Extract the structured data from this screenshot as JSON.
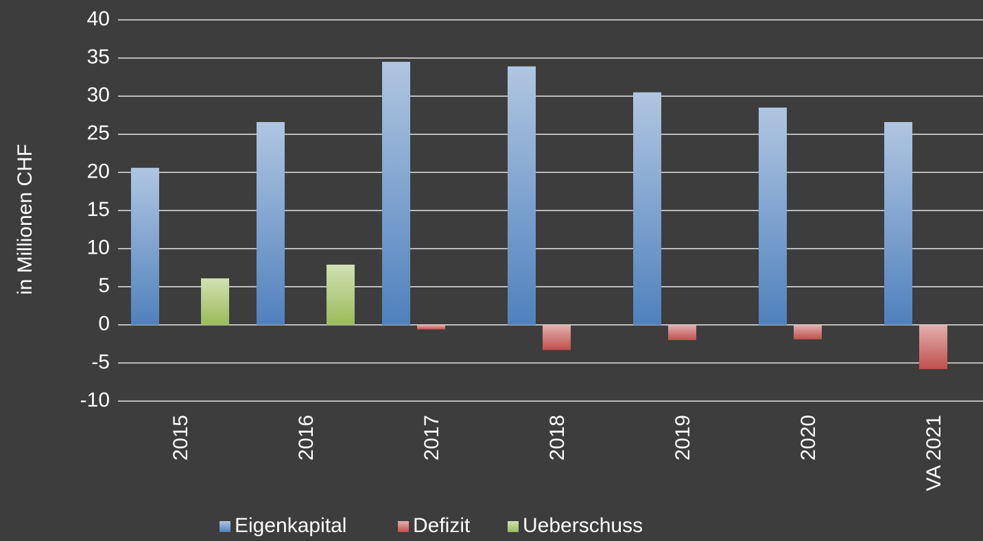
{
  "chart_data": {
    "type": "bar",
    "y_label": "in Millionen CHF",
    "categories": [
      "2015",
      "2016",
      "2017",
      "2018",
      "2019",
      "2020",
      "VA 2021"
    ],
    "series": [
      {
        "name": "Eigenkapital",
        "color": "#4f81bd",
        "values": [
          20.6,
          26.6,
          34.5,
          33.9,
          30.5,
          28.5,
          26.6
        ]
      },
      {
        "name": "Defizit",
        "color": "#c0504d",
        "values": [
          null,
          null,
          -0.6,
          -3.3,
          -2.0,
          -1.9,
          -5.8
        ]
      },
      {
        "name": "Ueberschuss",
        "color": "#9bbb59",
        "values": [
          6.1,
          7.9,
          null,
          null,
          null,
          null,
          null
        ]
      }
    ],
    "ylim": [
      -10,
      40
    ],
    "yticks": [
      -10,
      -5,
      0,
      5,
      10,
      15,
      20,
      25,
      30,
      35,
      40
    ],
    "grid": true,
    "legend": "bottom"
  }
}
